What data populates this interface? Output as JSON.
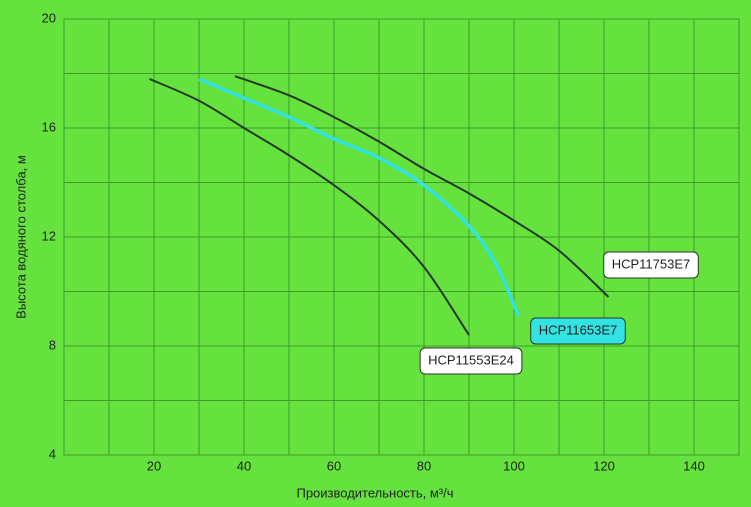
{
  "chart_data": {
    "type": "line",
    "xlabel": "Производительность, м³/ч",
    "ylabel": "Высота водяного столба, м",
    "xlim": [
      0,
      150
    ],
    "xticks": [
      20,
      40,
      60,
      80,
      100,
      120,
      140
    ],
    "ylim": [
      4,
      20
    ],
    "yticks": [
      4,
      8,
      12,
      16,
      20
    ],
    "grid": true,
    "series": [
      {
        "name": "HCP11553E24",
        "color": "#25382a",
        "x": [
          19,
          30,
          40,
          50,
          60,
          70,
          80,
          90
        ],
        "values": [
          17.8,
          17.0,
          16.0,
          15.0,
          13.9,
          12.6,
          10.9,
          8.4
        ]
      },
      {
        "name": "HCP11653E7",
        "color": "#33e3e3",
        "x": [
          30,
          40,
          50,
          60,
          70,
          80,
          90,
          96,
          101
        ],
        "values": [
          17.8,
          17.1,
          16.4,
          15.6,
          14.9,
          13.9,
          12.4,
          11.0,
          9.1
        ]
      },
      {
        "name": "HCP11753E7",
        "color": "#25382a",
        "x": [
          38,
          50,
          60,
          70,
          80,
          90,
          100,
          110,
          121
        ],
        "values": [
          17.9,
          17.2,
          16.4,
          15.5,
          14.5,
          13.6,
          12.6,
          11.5,
          9.8
        ]
      }
    ]
  }
}
